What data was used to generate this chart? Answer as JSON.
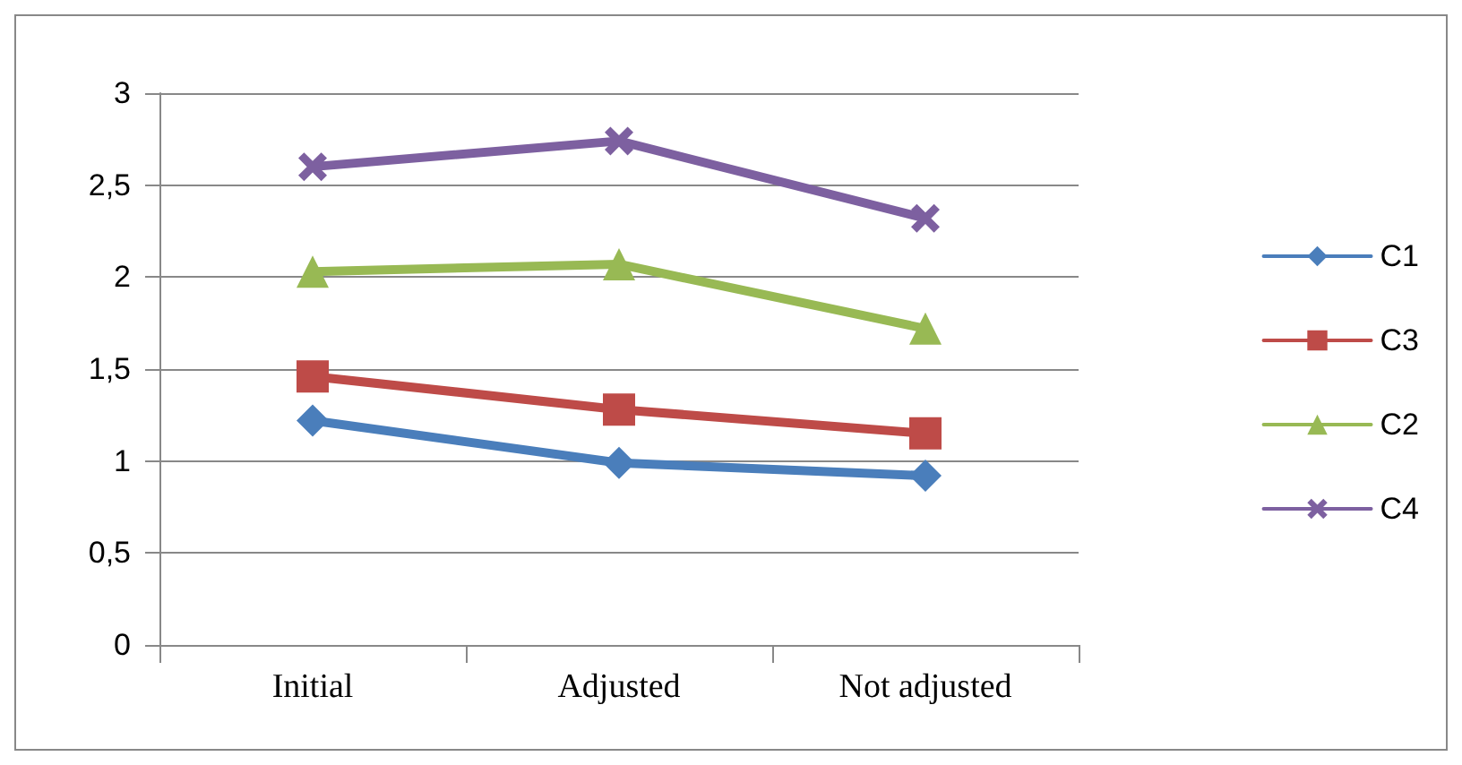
{
  "chart_data": {
    "type": "line",
    "categories": [
      "Initial",
      "Adjusted",
      "Not adjusted"
    ],
    "series": [
      {
        "name": "C1",
        "color": "#4a7ebb",
        "marker": "diamond",
        "values": [
          1.22,
          0.99,
          0.92
        ]
      },
      {
        "name": "C3",
        "color": "#be4b48",
        "marker": "square",
        "values": [
          1.46,
          1.28,
          1.15
        ]
      },
      {
        "name": "C2",
        "color": "#98b954",
        "marker": "triangle",
        "values": [
          2.03,
          2.07,
          1.72
        ]
      },
      {
        "name": "C4",
        "color": "#7d60a0",
        "marker": "cross",
        "values": [
          2.6,
          2.74,
          2.32
        ]
      }
    ],
    "ylim": [
      0,
      3
    ],
    "yticks": [
      0,
      {
        "value": 0.5,
        "label": "0,5"
      },
      1,
      {
        "value": 1.5,
        "label": "1,5"
      },
      2,
      {
        "value": 2.5,
        "label": "2,5"
      },
      3
    ],
    "grid": "y",
    "legend": "right",
    "line_style": "solid"
  }
}
